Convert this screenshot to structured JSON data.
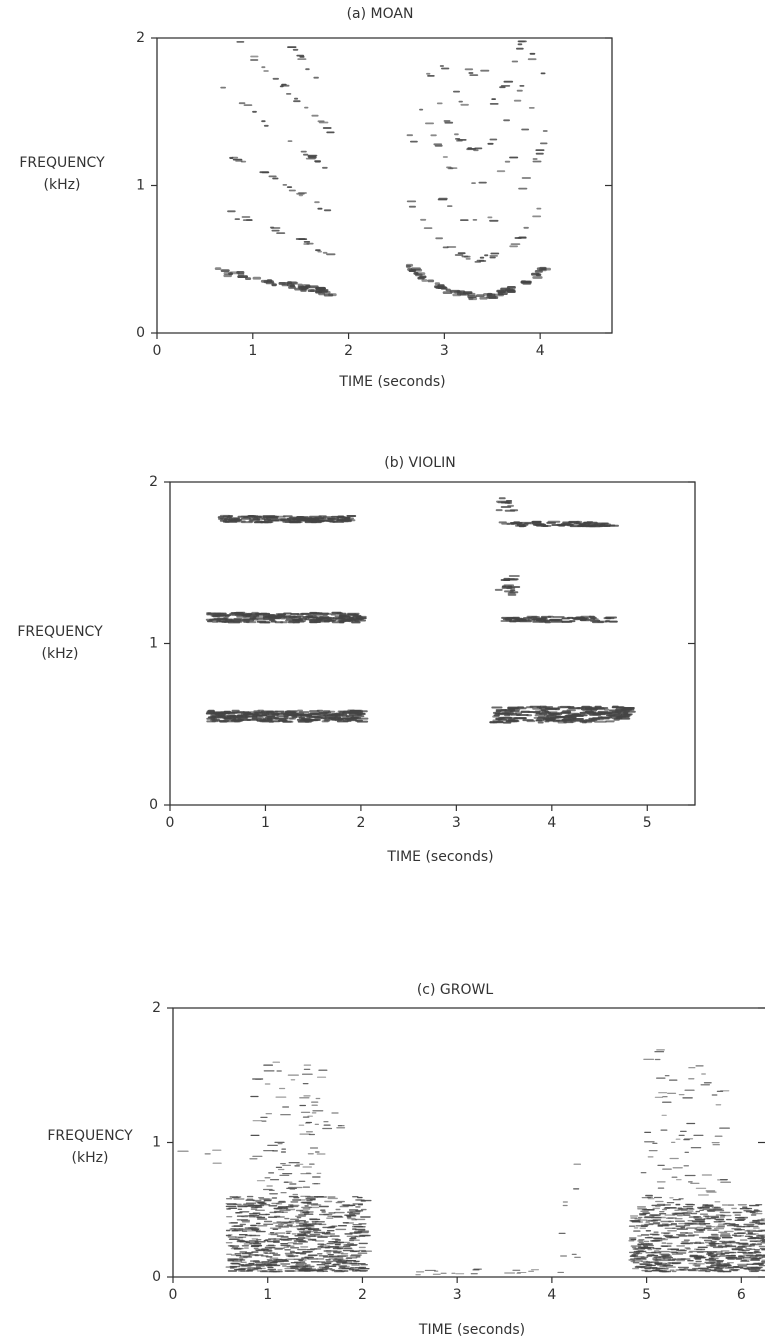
{
  "chart_data": [
    {
      "type": "spectrogram",
      "title": "(a) MOAN",
      "xlabel": "TIME (seconds)",
      "ylabel": "FREQUENCY",
      "yunit": "(kHz)",
      "xlim": [
        0,
        4.75
      ],
      "xticks": [
        0,
        1,
        2,
        3,
        4
      ],
      "ylim": [
        0,
        2
      ],
      "yticks": [
        0,
        1,
        2
      ]
    },
    {
      "type": "spectrogram",
      "title": "(b) VIOLIN",
      "xlabel": "TIME (seconds)",
      "ylabel": "FREQUENCY",
      "yunit": "(kHz)",
      "xlim": [
        0,
        5.5
      ],
      "xticks": [
        0,
        1,
        2,
        3,
        4,
        5
      ],
      "ylim": [
        0,
        2
      ],
      "yticks": [
        0,
        1,
        2
      ]
    },
    {
      "type": "spectrogram",
      "title": "(c) GROWL",
      "xlabel": "TIME (seconds)",
      "ylabel": "FREQUENCY",
      "yunit": "(kHz)",
      "xlim": [
        0,
        6.25
      ],
      "xticks": [
        0,
        1,
        2,
        3,
        4,
        5,
        6
      ],
      "ylim": [
        0,
        2
      ],
      "yticks": [
        0,
        1,
        2
      ]
    }
  ]
}
